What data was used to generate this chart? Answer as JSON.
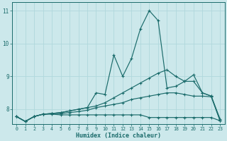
{
  "xlabel": "Humidex (Indice chaleur)",
  "bg_color": "#cce8eb",
  "grid_color": "#b0d8dc",
  "line_color": "#1a6b6b",
  "xlim": [
    -0.5,
    23.5
  ],
  "ylim": [
    7.55,
    11.25
  ],
  "yticks": [
    8,
    9,
    10,
    11
  ],
  "ytick_labels": [
    "8",
    "9",
    "10",
    "11"
  ],
  "xtick_labels": [
    "0",
    "1",
    "2",
    "3",
    "4",
    "5",
    "6",
    "7",
    "8",
    "9",
    "10",
    "11",
    "12",
    "13",
    "14",
    "15",
    "16",
    "17",
    "18",
    "19",
    "20",
    "21",
    "22",
    "23"
  ],
  "series": [
    [
      7.78,
      7.63,
      7.78,
      7.85,
      7.85,
      7.83,
      7.83,
      7.83,
      7.83,
      7.83,
      7.83,
      7.83,
      7.83,
      7.83,
      7.83,
      7.75,
      7.75,
      7.75,
      7.75,
      7.75,
      7.75,
      7.75,
      7.75,
      7.65
    ],
    [
      7.78,
      7.63,
      7.78,
      7.85,
      7.87,
      7.87,
      7.9,
      7.93,
      7.97,
      8.05,
      8.1,
      8.15,
      8.2,
      8.3,
      8.35,
      8.4,
      8.45,
      8.5,
      8.5,
      8.45,
      8.4,
      8.4,
      8.38,
      7.65
    ],
    [
      7.78,
      7.63,
      7.78,
      7.85,
      7.87,
      7.9,
      7.95,
      8.0,
      8.05,
      8.1,
      8.2,
      8.35,
      8.5,
      8.65,
      8.8,
      8.95,
      9.1,
      9.2,
      9.0,
      8.85,
      8.85,
      8.5,
      8.4,
      7.65
    ],
    [
      7.78,
      7.63,
      7.78,
      7.85,
      7.87,
      7.9,
      7.95,
      8.0,
      8.05,
      8.5,
      8.45,
      9.65,
      9.0,
      9.55,
      10.45,
      11.0,
      10.7,
      8.65,
      8.7,
      8.85,
      9.05,
      8.5,
      8.4,
      7.7
    ]
  ]
}
